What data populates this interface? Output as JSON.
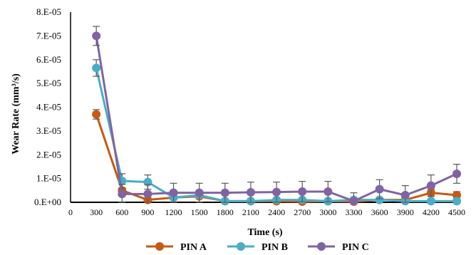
{
  "chart_data": {
    "type": "line",
    "xlabel": "Time (s)",
    "ylabel": "Wear Rate (mm³/s)",
    "x_ticks": [
      "0",
      "300",
      "600",
      "900",
      "1200",
      "1500",
      "1800",
      "2100",
      "2400",
      "2700",
      "3000",
      "3300",
      "3600",
      "3900",
      "4200",
      "4500"
    ],
    "y_ticks": [
      "0.E+00",
      "1.E-05",
      "2.E-05",
      "3.E-05",
      "4.E-05",
      "5.E-05",
      "6.E-05",
      "7.E-05",
      "8.E-05"
    ],
    "xlim": [
      0,
      4500
    ],
    "ylim": [
      0,
      8e-05
    ],
    "grid": false,
    "legend_position": "bottom",
    "x": [
      300,
      600,
      900,
      1200,
      1500,
      1800,
      2100,
      2400,
      2700,
      3000,
      3300,
      3600,
      3900,
      4200,
      4500
    ],
    "series": [
      {
        "name": "PIN A",
        "color": "#c55a11",
        "values": [
          3.7e-05,
          5e-06,
          1e-06,
          2e-06,
          2.5e-06,
          5e-07,
          5e-07,
          5e-07,
          3e-07,
          5e-07,
          3e-07,
          1e-06,
          1e-06,
          4e-06,
          3e-06
        ],
        "errors": [
          2e-06,
          1e-06,
          5e-07,
          5e-07,
          5e-07,
          3e-07,
          3e-07,
          3e-07,
          3e-07,
          3e-07,
          3e-07,
          3e-07,
          3e-07,
          1.5e-06,
          1.5e-06
        ]
      },
      {
        "name": "PIN B",
        "color": "#4bacc6",
        "values": [
          5.65e-05,
          9e-06,
          8.5e-06,
          2e-06,
          3e-06,
          5e-07,
          5e-07,
          1e-06,
          1e-06,
          5e-07,
          1e-06,
          1e-06,
          5e-07,
          5e-07,
          5e-07
        ],
        "errors": [
          3.5e-06,
          3e-06,
          3e-06,
          1e-06,
          1e-06,
          3e-07,
          3e-07,
          5e-07,
          5e-07,
          3e-07,
          5e-07,
          5e-07,
          3e-07,
          3e-07,
          3e-07
        ]
      },
      {
        "name": "PIN C",
        "color": "#8064a2",
        "values": [
          7e-05,
          3.5e-06,
          3.5e-06,
          4e-06,
          4e-06,
          4e-06,
          4.2e-06,
          4.3e-06,
          4.5e-06,
          4.5e-06,
          5e-07,
          5.5e-06,
          3e-06,
          7e-06,
          1.2e-05
        ],
        "errors": [
          4e-06,
          4e-06,
          4e-06,
          4e-06,
          4e-06,
          4e-06,
          4.3e-06,
          4.2e-06,
          4.3e-06,
          4.3e-06,
          3.5e-06,
          4e-06,
          4e-06,
          4.5e-06,
          4e-06
        ]
      }
    ]
  }
}
